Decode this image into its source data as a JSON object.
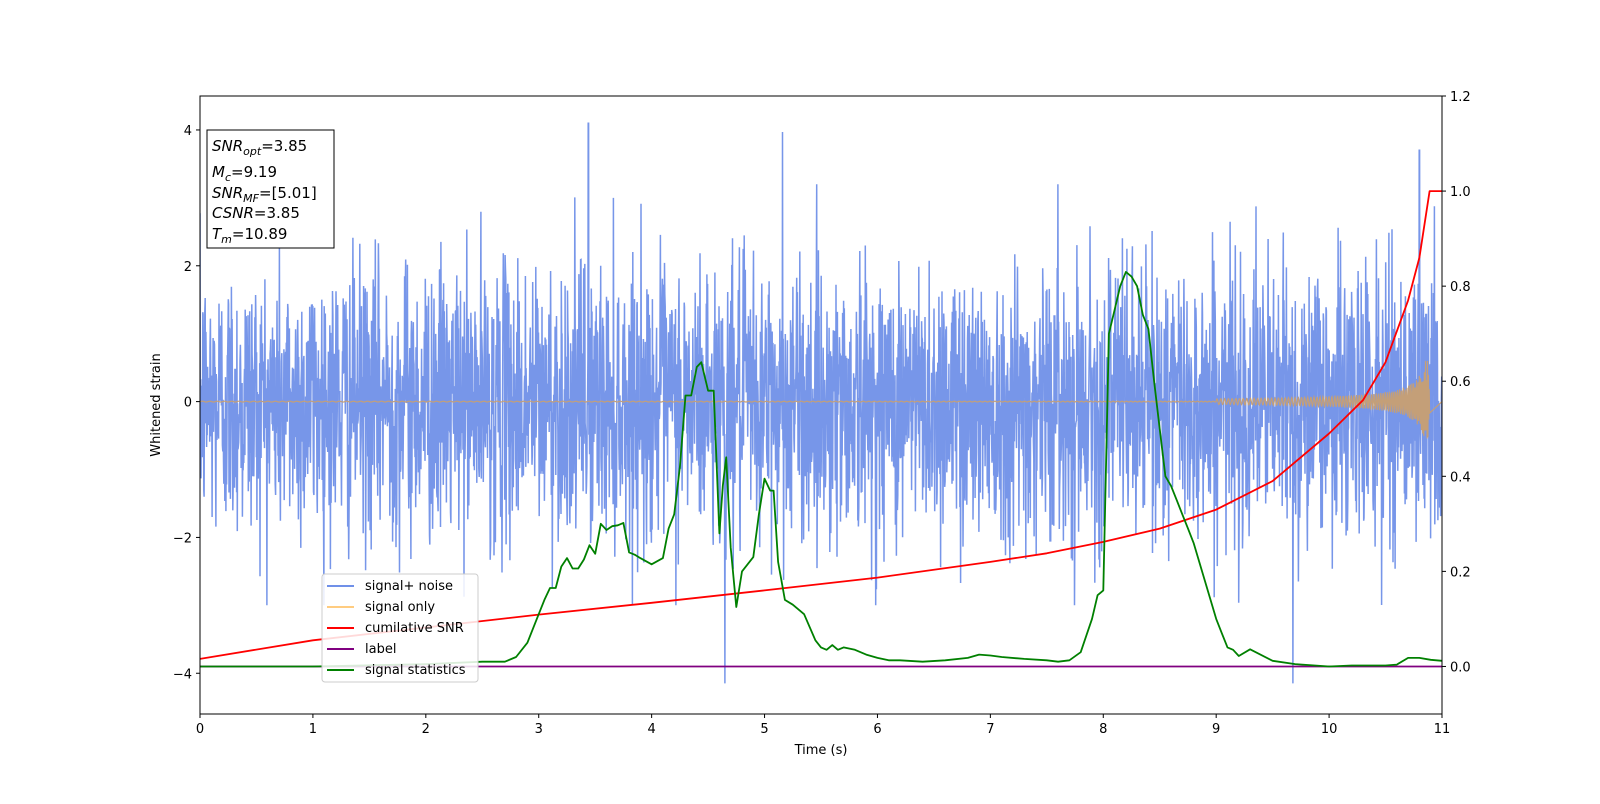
{
  "chart_data": {
    "type": "line",
    "xlabel": "Time (s)",
    "ylabel_left": "Whitened strain",
    "ylabel_right": "",
    "xlim": [
      0,
      11
    ],
    "ylim_left": [
      -4.6,
      4.5
    ],
    "ylim_right": [
      -0.1,
      1.2
    ],
    "grid": false,
    "xticks": [
      "0",
      "1",
      "2",
      "3",
      "4",
      "5",
      "6",
      "7",
      "8",
      "9",
      "10",
      "11"
    ],
    "xtick_values": [
      0,
      1,
      2,
      3,
      4,
      5,
      6,
      7,
      8,
      9,
      10,
      11
    ],
    "yticks_left": [
      "−4",
      "−2",
      "0",
      "2",
      "4"
    ],
    "ytick_values_left": [
      -4,
      -2,
      0,
      2,
      4
    ],
    "yticks_right": [
      "0.0",
      "0.2",
      "0.4",
      "0.6",
      "0.8",
      "1.0",
      "1.2"
    ],
    "ytick_values_right": [
      0.0,
      0.2,
      0.4,
      0.6,
      0.8,
      1.0,
      1.2
    ],
    "info_box": {
      "snr_opt": {
        "base": "SNR",
        "sub": "opt",
        "value": "=3.85"
      },
      "mc": {
        "base": "M",
        "sub": "c",
        "value": "=9.19"
      },
      "snr_mf": {
        "base": "SNR",
        "sub": "MF",
        "value": "=[5.01]"
      },
      "csnr": {
        "base": "CSNR",
        "value": "=3.85"
      },
      "tm": {
        "base": "T",
        "sub": "m",
        "value": "=10.89"
      }
    },
    "legend": {
      "placement": "lower-left",
      "entries": [
        {
          "label": "signal+ noise",
          "color": "#7090e8"
        },
        {
          "label": "signal only",
          "color": "#ffcc80"
        },
        {
          "label": "cumilative SNR",
          "color": "#ff0000"
        },
        {
          "label": "label",
          "color": "#800080"
        },
        {
          "label": "signal statistics",
          "color": "#008000"
        }
      ]
    },
    "series": [
      {
        "name": "signal+ noise",
        "axis": "left",
        "color": "#7090e8",
        "description_values": "whitened noise, amplitude mostly within [-2.5, 2.5], peaks to about +4.1 and -4.2",
        "notable_peaks": [
          {
            "x": 3.44,
            "y": 4.1
          },
          {
            "x": 5.16,
            "y": 3.97
          },
          {
            "x": 10.8,
            "y": 3.7
          },
          {
            "x": 4.65,
            "y": -4.15
          },
          {
            "x": 9.68,
            "y": -4.15
          }
        ],
        "envelope": 2.6
      },
      {
        "name": "signal only",
        "axis": "left",
        "color": "#ffcc80",
        "chirp": {
          "t_merge": 10.89,
          "amp_at_start": 0.006,
          "amp_max": 0.6
        }
      },
      {
        "name": "cumilative SNR",
        "axis": "right",
        "color": "#ff0000",
        "x": [
          0,
          1,
          2,
          3,
          4,
          5,
          6,
          7,
          7.5,
          8,
          8.5,
          9,
          9.5,
          10,
          10.3,
          10.5,
          10.7,
          10.8,
          10.89,
          11
        ],
        "values": [
          0.016,
          0.055,
          0.082,
          0.109,
          0.134,
          0.16,
          0.187,
          0.22,
          0.238,
          0.262,
          0.29,
          0.33,
          0.39,
          0.49,
          0.56,
          0.64,
          0.77,
          0.86,
          1.0,
          1.0
        ]
      },
      {
        "name": "label",
        "axis": "right",
        "color": "#800080",
        "x": [
          0,
          11
        ],
        "values": [
          0.0,
          0.0
        ]
      },
      {
        "name": "signal statistics",
        "axis": "right",
        "color": "#008000",
        "x": [
          0,
          1,
          2,
          2.5,
          2.7,
          2.8,
          2.9,
          3.0,
          3.05,
          3.1,
          3.15,
          3.2,
          3.25,
          3.3,
          3.35,
          3.4,
          3.45,
          3.5,
          3.55,
          3.6,
          3.65,
          3.7,
          3.75,
          3.8,
          3.85,
          3.9,
          4.0,
          4.1,
          4.15,
          4.2,
          4.25,
          4.3,
          4.35,
          4.4,
          4.44,
          4.5,
          4.55,
          4.6,
          4.63,
          4.66,
          4.7,
          4.75,
          4.8,
          4.85,
          4.9,
          4.95,
          5.0,
          5.05,
          5.08,
          5.12,
          5.18,
          5.25,
          5.35,
          5.45,
          5.5,
          5.55,
          5.6,
          5.65,
          5.7,
          5.8,
          5.9,
          6.0,
          6.1,
          6.2,
          6.4,
          6.6,
          6.8,
          6.9,
          7.0,
          7.1,
          7.3,
          7.5,
          7.6,
          7.7,
          7.8,
          7.9,
          7.95,
          8.0,
          8.05,
          8.1,
          8.15,
          8.2,
          8.25,
          8.3,
          8.35,
          8.4,
          8.45,
          8.5,
          8.55,
          8.6,
          8.65,
          8.7,
          8.75,
          8.8,
          8.9,
          9.0,
          9.05,
          9.1,
          9.15,
          9.2,
          9.3,
          9.5,
          9.7,
          10.0,
          10.2,
          10.5,
          10.6,
          10.7,
          10.8,
          10.9,
          11.0
        ],
        "values": [
          0.0,
          0.0,
          0.005,
          0.01,
          0.01,
          0.02,
          0.05,
          0.11,
          0.14,
          0.165,
          0.165,
          0.21,
          0.228,
          0.206,
          0.206,
          0.225,
          0.255,
          0.237,
          0.3,
          0.287,
          0.295,
          0.297,
          0.302,
          0.24,
          0.235,
          0.228,
          0.215,
          0.228,
          0.29,
          0.32,
          0.42,
          0.57,
          0.57,
          0.63,
          0.64,
          0.58,
          0.58,
          0.28,
          0.38,
          0.44,
          0.25,
          0.125,
          0.2,
          0.215,
          0.23,
          0.32,
          0.395,
          0.37,
          0.37,
          0.22,
          0.14,
          0.13,
          0.11,
          0.055,
          0.04,
          0.035,
          0.045,
          0.035,
          0.04,
          0.035,
          0.025,
          0.018,
          0.013,
          0.013,
          0.01,
          0.013,
          0.018,
          0.025,
          0.023,
          0.02,
          0.016,
          0.013,
          0.01,
          0.013,
          0.03,
          0.1,
          0.15,
          0.16,
          0.7,
          0.75,
          0.8,
          0.83,
          0.82,
          0.8,
          0.74,
          0.71,
          0.6,
          0.5,
          0.4,
          0.38,
          0.35,
          0.32,
          0.29,
          0.26,
          0.18,
          0.1,
          0.07,
          0.04,
          0.035,
          0.022,
          0.036,
          0.012,
          0.005,
          0.0,
          0.002,
          0.002,
          0.004,
          0.018,
          0.018,
          0.014,
          0.012
        ]
      }
    ]
  }
}
